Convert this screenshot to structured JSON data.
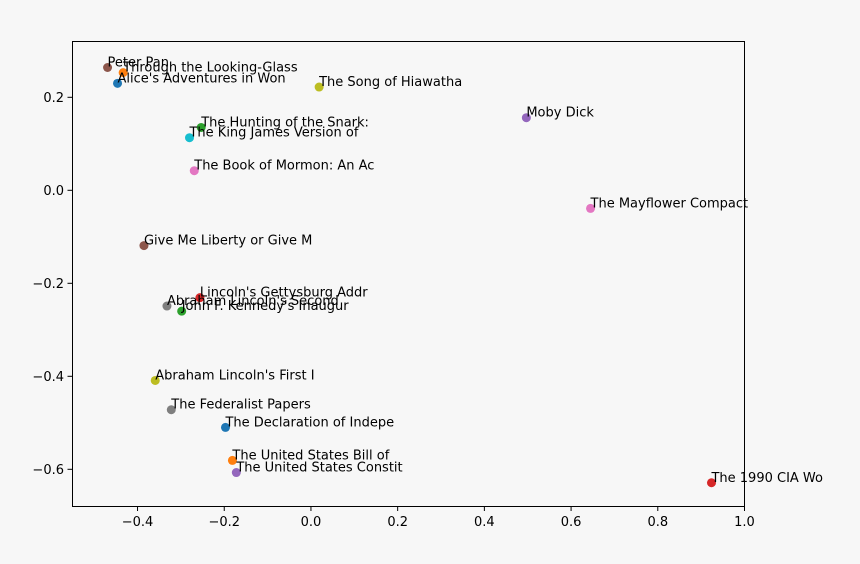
{
  "chart_data": {
    "type": "scatter",
    "title": "",
    "xlabel": "",
    "ylabel": "",
    "xlim": [
      -0.55,
      1.0
    ],
    "ylim": [
      -0.68,
      0.32
    ],
    "xticks": [
      -0.4,
      -0.2,
      0.0,
      0.2,
      0.4,
      0.6,
      0.8,
      1.0
    ],
    "xtick_labels": [
      "−0.4",
      "−0.2",
      "0.0",
      "0.2",
      "0.4",
      "0.6",
      "0.8",
      "1.0"
    ],
    "yticks": [
      0.2,
      0.0,
      -0.2,
      -0.4,
      -0.6
    ],
    "ytick_labels": [
      "0.2",
      "0.0",
      "−0.2",
      "−0.4",
      "−0.6"
    ],
    "grid": false,
    "points": [
      {
        "label": "Peter Pan",
        "x": -0.468,
        "y": 0.263,
        "color": "#8c564b"
      },
      {
        "label": "Through the Looking-Glass",
        "x": -0.432,
        "y": 0.252,
        "color": "#ff7f0e"
      },
      {
        "label": "Alice's Adventures in Won",
        "x": -0.445,
        "y": 0.229,
        "color": "#1f77b4"
      },
      {
        "label": "The Song of Hiawatha",
        "x": 0.02,
        "y": 0.221,
        "color": "#bcbd22"
      },
      {
        "label": "Moby Dick",
        "x": 0.498,
        "y": 0.155,
        "color": "#9467bd"
      },
      {
        "label": "The Hunting of the Snark:",
        "x": -0.252,
        "y": 0.134,
        "color": "#2ca02c"
      },
      {
        "label": "The King James Version of",
        "x": -0.279,
        "y": 0.112,
        "color": "#17becf"
      },
      {
        "label": "The Book of Mormon: An Ac",
        "x": -0.268,
        "y": 0.041,
        "color": "#e377c2"
      },
      {
        "label": "The Mayflower Compact",
        "x": 0.646,
        "y": -0.04,
        "color": "#e377c2"
      },
      {
        "label": "Give Me Liberty or Give M",
        "x": -0.384,
        "y": -0.12,
        "color": "#8c564b"
      },
      {
        "label": "Lincoln's Gettysburg Addr",
        "x": -0.255,
        "y": -0.232,
        "color": "#d62728"
      },
      {
        "label": "Abraham Lincoln's Second",
        "x": -0.331,
        "y": -0.25,
        "color": "#7f7f7f"
      },
      {
        "label": "John F. Kennedy's Inaugur",
        "x": -0.297,
        "y": -0.261,
        "color": "#2ca02c"
      },
      {
        "label": "Abraham Lincoln's First I",
        "x": -0.358,
        "y": -0.41,
        "color": "#bcbd22"
      },
      {
        "label": "The Federalist Papers",
        "x": -0.321,
        "y": -0.473,
        "color": "#7f7f7f"
      },
      {
        "label": "The Declaration of Indepe",
        "x": -0.196,
        "y": -0.511,
        "color": "#1f77b4"
      },
      {
        "label": "The United States Bill of",
        "x": -0.18,
        "y": -0.582,
        "color": "#ff7f0e"
      },
      {
        "label": "The United States Constit",
        "x": -0.171,
        "y": -0.608,
        "color": "#9467bd"
      },
      {
        "label": "The 1990 CIA Wo",
        "x": 0.925,
        "y": -0.63,
        "color": "#d62728"
      }
    ]
  }
}
